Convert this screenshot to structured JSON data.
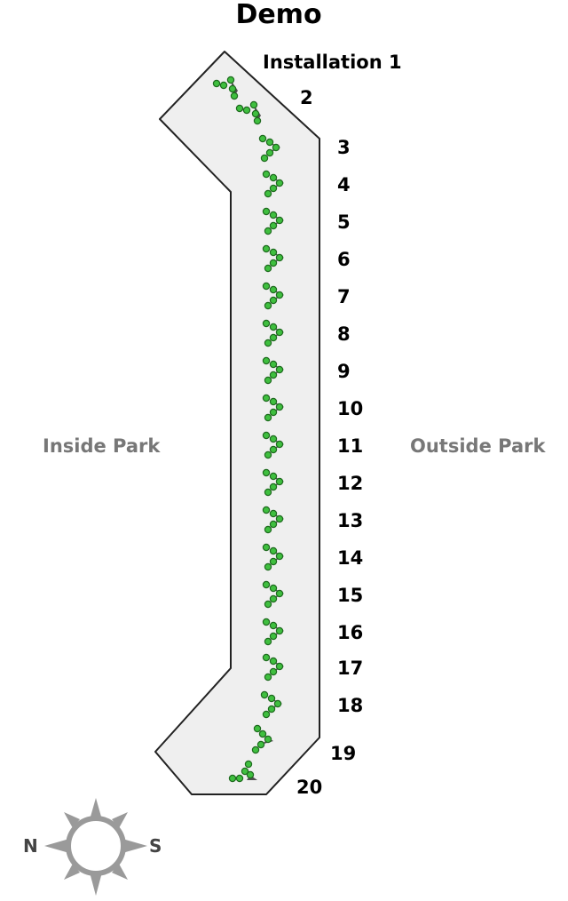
{
  "title": "Demo",
  "side_labels": {
    "inside": "Inside Park",
    "outside": "Outside Park"
  },
  "installations": [
    "Installation 1",
    "2",
    "3",
    "4",
    "5",
    "6",
    "7",
    "8",
    "9",
    "10",
    "11",
    "12",
    "13",
    "14",
    "15",
    "16",
    "17",
    "18",
    "19",
    "20"
  ],
  "compass": {
    "north": "N",
    "south": "S"
  },
  "colors": {
    "zone_fill": "#efefef",
    "zone_stroke": "#222222",
    "dot_fill": "#3fbf3f",
    "dot_stroke": "#1e6a1e",
    "side_label": "#777777",
    "compass": "#9a9a9a"
  }
}
